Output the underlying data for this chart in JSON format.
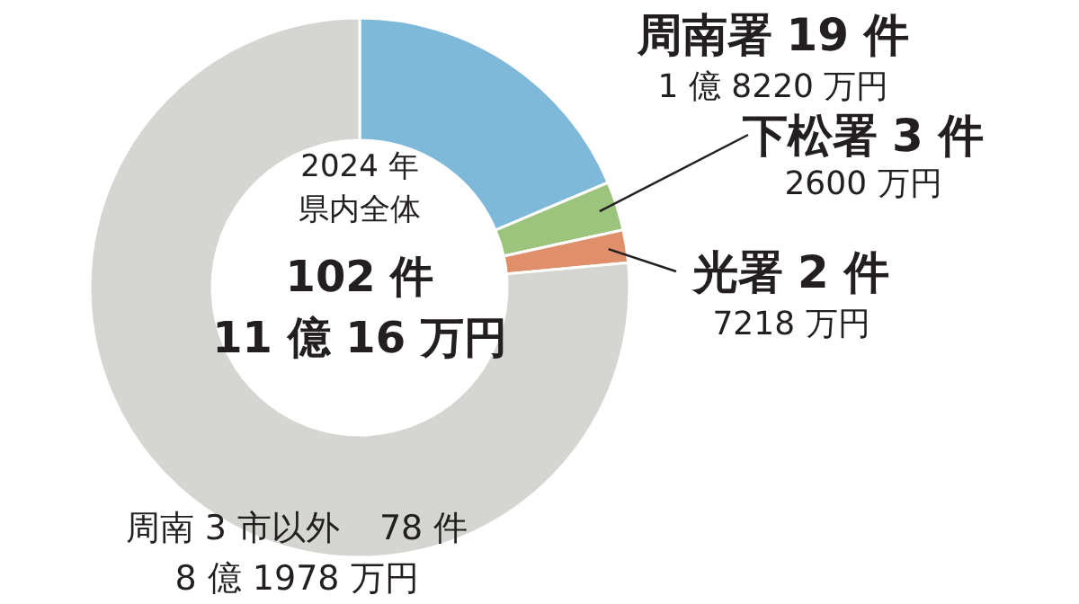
{
  "chart_data": {
    "type": "donut",
    "title": "2024 年",
    "subtitle": "県内全体",
    "categories": [
      "周南署",
      "下松署",
      "光署",
      "周南 3 市以外"
    ],
    "values": [
      19,
      3,
      2,
      78
    ],
    "value_labels": [
      "19 件",
      "3 件",
      "2 件",
      "78 件"
    ],
    "colors": [
      "#7fb9d9",
      "#9dc47d",
      "#df906b",
      "#d5d5d1"
    ],
    "annotations": [
      "102 件",
      "11 億 16 万円",
      {
        "text": "1 億 8220 万円",
        "x": "周南署"
      },
      {
        "text": "2600 万円",
        "x": "下松署"
      },
      {
        "text": "7218 万円",
        "x": "光署"
      },
      {
        "text": "8 億 1978 万円",
        "x": "周南 3 市以外"
      }
    ],
    "legend": false
  }
}
